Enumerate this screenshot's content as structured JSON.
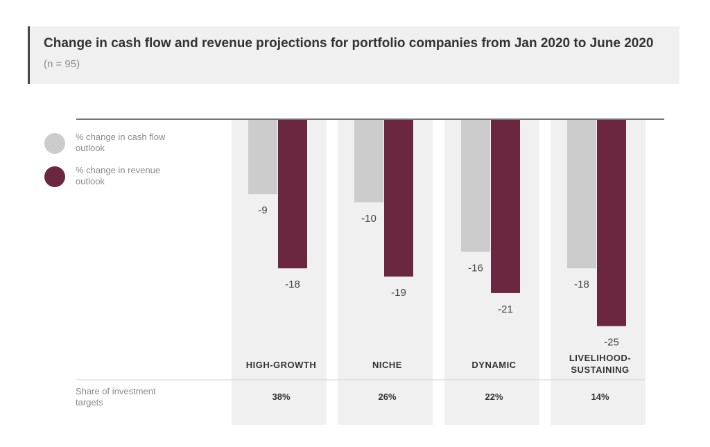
{
  "title": "Change in cash flow and revenue projections for portfolio companies from Jan 2020 to June 2020",
  "subtitle": "(n = 95)",
  "legend": [
    {
      "label": "% change in cash flow outlook",
      "color": "#cccccc"
    },
    {
      "label": "% change in revenue outlook",
      "color": "#6b2640"
    }
  ],
  "share_row_label": "Share of investment targets",
  "chart_data": {
    "type": "bar",
    "categories": [
      "HIGH-GROWTH",
      "NICHE",
      "DYNAMIC",
      "LIVELIHOOD-SUSTAINING"
    ],
    "category_lines": [
      [
        "HIGH-GROWTH"
      ],
      [
        "NICHE"
      ],
      [
        "DYNAMIC"
      ],
      [
        "LIVELIHOOD-",
        "SUSTAINING"
      ]
    ],
    "series": [
      {
        "name": "% change in cash flow outlook",
        "values": [
          -9,
          -10,
          -16,
          -18
        ],
        "color": "#cccccc"
      },
      {
        "name": "% change in revenue outlook",
        "values": [
          -18,
          -19,
          -21,
          -25
        ],
        "color": "#6b2640"
      }
    ],
    "share_of_investment_targets": [
      "38%",
      "26%",
      "22%",
      "14%"
    ],
    "ylim": [
      -25,
      0
    ],
    "grid": false,
    "legend_position": "top-left"
  }
}
